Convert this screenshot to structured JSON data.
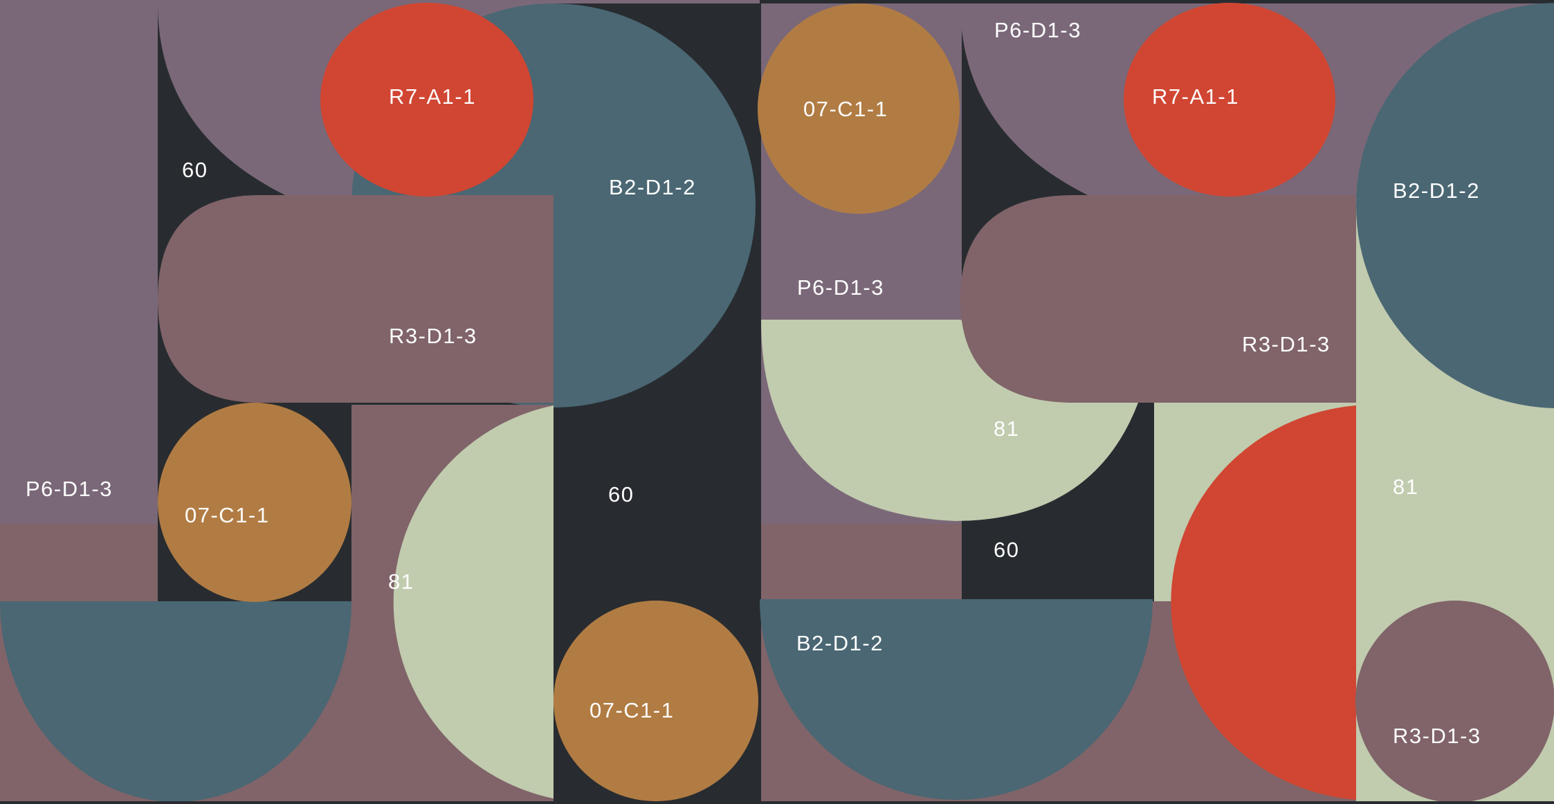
{
  "colors": {
    "purple": "#7a6878",
    "mauve": "#806469",
    "teal": "#4a6773",
    "sage": "#c1cbae",
    "red": "#d04632",
    "ochre": "#b17c43",
    "dark": "#282c30"
  },
  "labels": {
    "p6_d1_3": "P6-D1-3",
    "r7_a1_1": "R7-A1-1",
    "b2_d1_2": "B2-D1-2",
    "r3_d1_3": "R3-D1-3",
    "o7_c1_1": "07-C1-1",
    "n60": "60",
    "n81": "81"
  }
}
